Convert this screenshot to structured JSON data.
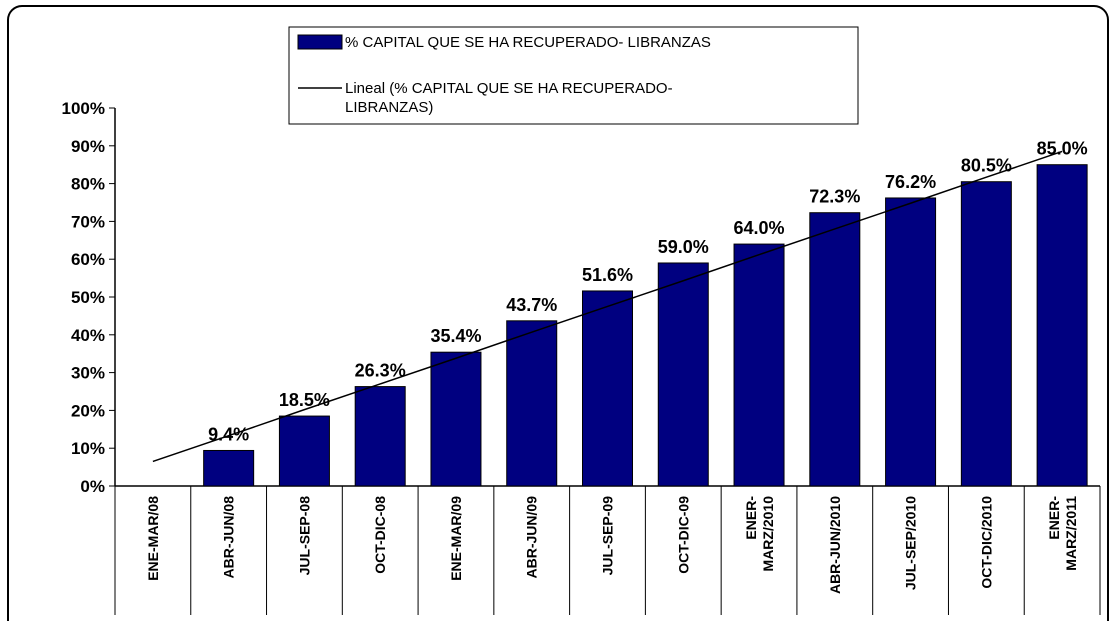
{
  "chart_data": {
    "type": "bar",
    "categories": [
      "ENE-MAR/08",
      "ABR-JUN/08",
      "JUL-SEP-08",
      "OCT-DIC-08",
      "ENE-MAR/09",
      "ABR-JUN/09",
      "JUL-SEP-09",
      "OCT-DIC-09",
      "ENER-MARZ/2010",
      "ABR-JUN/2010",
      "JUL-SEP/2010",
      "OCT-DIC/2010",
      "ENER-MARZ/2011"
    ],
    "series": [
      {
        "name": "% CAPITAL QUE SE HA RECUPERADO- LIBRANZAS",
        "color": "#000080",
        "values": [
          null,
          9.4,
          18.5,
          26.3,
          35.4,
          43.7,
          51.6,
          59.0,
          64.0,
          72.3,
          76.2,
          80.5,
          85.0
        ],
        "value_labels": [
          null,
          "9.4%",
          "18.5%",
          "26.3%",
          "35.4%",
          "43.7%",
          "51.6%",
          "59.0%",
          "64.0%",
          "72.3%",
          "76.2%",
          "80.5%",
          "85.0%"
        ]
      },
      {
        "name": "Lineal (% CAPITAL QUE SE HA RECUPERADO- LIBRANZAS)",
        "color": "#000000",
        "type": "line",
        "values": [
          6.5,
          13.3,
          20.2,
          27.0,
          33.8,
          40.7,
          47.5,
          54.3,
          61.2,
          68.0,
          74.8,
          81.7,
          88.5
        ]
      }
    ],
    "ylim": [
      0,
      100
    ],
    "yticks": [
      {
        "value": 0,
        "label": "0%"
      },
      {
        "value": 10,
        "label": "10%"
      },
      {
        "value": 20,
        "label": "20%"
      },
      {
        "value": 30,
        "label": "30%"
      },
      {
        "value": 40,
        "label": "40%"
      },
      {
        "value": 50,
        "label": "50%"
      },
      {
        "value": 60,
        "label": "60%"
      },
      {
        "value": 70,
        "label": "70%"
      },
      {
        "value": 80,
        "label": "80%"
      },
      {
        "value": 90,
        "label": "90%"
      },
      {
        "value": 100,
        "label": "100%"
      }
    ]
  }
}
